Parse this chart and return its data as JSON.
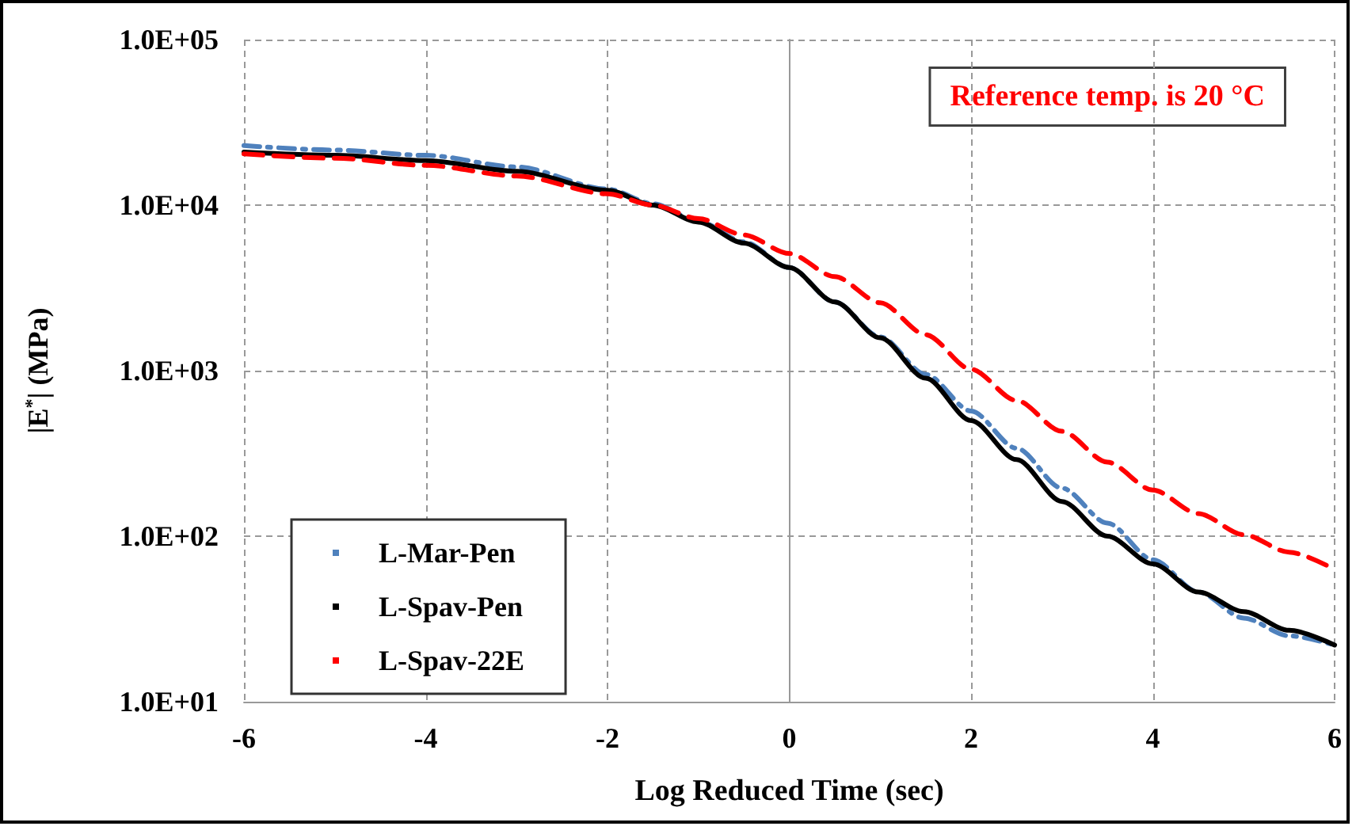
{
  "chart_data": {
    "type": "line",
    "xlabel": "Log Reduced Time (sec)",
    "ylabel": "|E$^{*}$| (MPa)",
    "annotations": [
      "Reference temp. is 20 °C"
    ],
    "log": "y",
    "grid": true,
    "legend": "bottom left",
    "marker": "none",
    "xlim": [
      -6,
      6
    ],
    "xticks": [
      -6,
      -4,
      -2,
      0,
      2,
      4,
      6
    ],
    "ylim": [
      10,
      100000
    ],
    "yticks": [
      {
        "value": 10,
        "label": "1.0E+01"
      },
      {
        "value": 100,
        "label": "1.0E+02"
      },
      {
        "value": 1000,
        "label": "1.0E+03"
      },
      {
        "value": 10000,
        "label": "1.0E+04"
      },
      {
        "value": 100000,
        "label": "1.0E+05"
      }
    ],
    "x": [
      -6,
      -5,
      -4,
      -3,
      -2,
      -1.5,
      -1,
      -0.5,
      0,
      0.5,
      1,
      1.5,
      2,
      2.5,
      3,
      3.5,
      4,
      4.5,
      5,
      5.5,
      6
    ],
    "series": [
      {
        "name": "L-Mar-Pen",
        "color": "#4f81bd",
        "line_style": "dashdot",
        "values": [
          22900,
          21500,
          20000,
          17000,
          12500,
          10200,
          8000,
          6000,
          4200,
          2600,
          1600,
          950,
          570,
          340,
          195,
          120,
          72,
          46,
          32,
          25,
          22
        ]
      },
      {
        "name": "L-Spav-Pen",
        "color": "#000000",
        "line_style": "solid",
        "values": [
          20900,
          20000,
          18600,
          16000,
          12300,
          10000,
          7900,
          5900,
          4200,
          2600,
          1580,
          900,
          500,
          290,
          162,
          100,
          68,
          46,
          35,
          27,
          22
        ]
      },
      {
        "name": "L-Spav-22E",
        "color": "#ff0000",
        "line_style": "dashed",
        "values": [
          20400,
          19200,
          17400,
          15000,
          11700,
          10000,
          8300,
          6600,
          5100,
          3700,
          2570,
          1650,
          1020,
          660,
          430,
          280,
          190,
          137,
          102,
          80,
          63
        ]
      }
    ]
  }
}
